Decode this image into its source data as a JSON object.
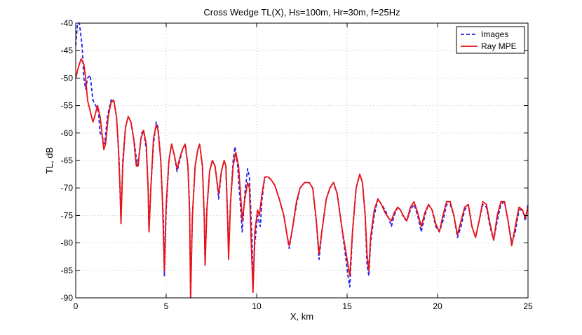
{
  "chart_data": {
    "type": "line",
    "title": "Cross Wedge TL(X), Hs=100m, Hr=30m, f=25Hz",
    "xlabel": "X, km",
    "ylabel": "TL, dB",
    "xlim": [
      0,
      25
    ],
    "ylim": [
      -90,
      -40
    ],
    "xticks": [
      0,
      5,
      10,
      15,
      20,
      25
    ],
    "yticks": [
      -90,
      -85,
      -80,
      -75,
      -70,
      -65,
      -60,
      -55,
      -50,
      -45,
      -40
    ],
    "grid": true,
    "legend_position": "top-right",
    "series": [
      {
        "name": "Images",
        "color": "#2222ee",
        "style": "dashed",
        "points": [
          [
            0,
            -44
          ],
          [
            0.1,
            -40
          ],
          [
            0.2,
            -40
          ],
          [
            0.35,
            -44
          ],
          [
            0.45,
            -50
          ],
          [
            0.55,
            -52
          ],
          [
            0.65,
            -50
          ],
          [
            0.8,
            -49.5
          ],
          [
            0.95,
            -54
          ],
          [
            1.1,
            -55
          ],
          [
            1.25,
            -56
          ],
          [
            1.35,
            -60
          ],
          [
            1.5,
            -61
          ],
          [
            1.6,
            -62
          ],
          [
            1.75,
            -57
          ],
          [
            1.95,
            -54
          ],
          [
            2.1,
            -54
          ],
          [
            2.25,
            -57
          ],
          [
            2.4,
            -65
          ],
          [
            2.5,
            -76
          ],
          [
            2.6,
            -65
          ],
          [
            2.75,
            -59
          ],
          [
            2.9,
            -57
          ],
          [
            3.05,
            -58
          ],
          [
            3.25,
            -62
          ],
          [
            3.4,
            -66
          ],
          [
            3.5,
            -64
          ],
          [
            3.65,
            -60
          ],
          [
            3.75,
            -59.5
          ],
          [
            3.9,
            -63
          ],
          [
            4.0,
            -70
          ],
          [
            4.05,
            -78
          ],
          [
            4.15,
            -70
          ],
          [
            4.3,
            -62
          ],
          [
            4.45,
            -58
          ],
          [
            4.55,
            -59
          ],
          [
            4.7,
            -65
          ],
          [
            4.85,
            -76
          ],
          [
            4.9,
            -86
          ],
          [
            5.0,
            -74
          ],
          [
            5.15,
            -65
          ],
          [
            5.3,
            -62
          ],
          [
            5.45,
            -64
          ],
          [
            5.6,
            -67
          ],
          [
            5.75,
            -65
          ],
          [
            5.9,
            -63
          ],
          [
            6.05,
            -62
          ],
          [
            6.2,
            -66
          ],
          [
            6.3,
            -74
          ],
          [
            6.35,
            -90
          ],
          [
            6.45,
            -75
          ],
          [
            6.6,
            -66
          ],
          [
            6.75,
            -63
          ],
          [
            6.85,
            -62
          ],
          [
            7.0,
            -66
          ],
          [
            7.1,
            -75
          ],
          [
            7.15,
            -84
          ],
          [
            7.25,
            -74
          ],
          [
            7.4,
            -67
          ],
          [
            7.55,
            -65
          ],
          [
            7.7,
            -66
          ],
          [
            7.85,
            -70
          ],
          [
            7.9,
            -72
          ],
          [
            8.05,
            -67
          ],
          [
            8.2,
            -65
          ],
          [
            8.3,
            -66
          ],
          [
            8.4,
            -76
          ],
          [
            8.45,
            -82
          ],
          [
            8.55,
            -73
          ],
          [
            8.7,
            -65
          ],
          [
            8.8,
            -62.5
          ],
          [
            8.95,
            -66
          ],
          [
            9.1,
            -73
          ],
          [
            9.2,
            -78
          ],
          [
            9.35,
            -71
          ],
          [
            9.5,
            -66.5
          ],
          [
            9.6,
            -68
          ],
          [
            9.75,
            -80
          ],
          [
            9.8,
            -88
          ],
          [
            9.9,
            -80
          ],
          [
            10.05,
            -75
          ],
          [
            10.2,
            -77
          ],
          [
            10.3,
            -72
          ],
          [
            10.45,
            -68
          ],
          [
            10.6,
            -68
          ],
          [
            10.8,
            -68.5
          ],
          [
            11.0,
            -69.5
          ],
          [
            11.25,
            -72
          ],
          [
            11.5,
            -75
          ],
          [
            11.7,
            -79
          ],
          [
            11.8,
            -81
          ],
          [
            11.95,
            -78
          ],
          [
            12.2,
            -73
          ],
          [
            12.4,
            -70
          ],
          [
            12.65,
            -69
          ],
          [
            12.9,
            -69
          ],
          [
            13.1,
            -70
          ],
          [
            13.3,
            -76
          ],
          [
            13.45,
            -83
          ],
          [
            13.6,
            -78
          ],
          [
            13.85,
            -72
          ],
          [
            14.05,
            -70
          ],
          [
            14.25,
            -69
          ],
          [
            14.45,
            -71
          ],
          [
            14.7,
            -77
          ],
          [
            14.9,
            -82
          ],
          [
            15.05,
            -86
          ],
          [
            15.15,
            -88
          ],
          [
            15.3,
            -78
          ],
          [
            15.5,
            -70
          ],
          [
            15.7,
            -67.5
          ],
          [
            15.85,
            -69
          ],
          [
            16.0,
            -75
          ],
          [
            16.1,
            -84
          ],
          [
            16.2,
            -86
          ],
          [
            16.3,
            -80
          ],
          [
            16.5,
            -75
          ],
          [
            16.7,
            -72
          ],
          [
            16.9,
            -73
          ],
          [
            17.1,
            -74
          ],
          [
            17.3,
            -75.5
          ],
          [
            17.45,
            -77
          ],
          [
            17.6,
            -75
          ],
          [
            17.8,
            -73.5
          ],
          [
            17.95,
            -74
          ],
          [
            18.15,
            -75.5
          ],
          [
            18.3,
            -76
          ],
          [
            18.5,
            -74
          ],
          [
            18.7,
            -73
          ],
          [
            18.9,
            -75
          ],
          [
            19.1,
            -78
          ],
          [
            19.3,
            -75
          ],
          [
            19.5,
            -73
          ],
          [
            19.7,
            -74
          ],
          [
            19.9,
            -77
          ],
          [
            20.1,
            -78
          ],
          [
            20.3,
            -76
          ],
          [
            20.5,
            -73
          ],
          [
            20.7,
            -73
          ],
          [
            20.9,
            -75
          ],
          [
            21.1,
            -79
          ],
          [
            21.3,
            -77
          ],
          [
            21.5,
            -74
          ],
          [
            21.7,
            -73
          ],
          [
            21.9,
            -77
          ],
          [
            22.1,
            -79
          ],
          [
            22.3,
            -76
          ],
          [
            22.5,
            -73
          ],
          [
            22.7,
            -73.5
          ],
          [
            22.9,
            -77
          ],
          [
            23.1,
            -79.5
          ],
          [
            23.3,
            -76
          ],
          [
            23.5,
            -73
          ],
          [
            23.7,
            -72.5
          ],
          [
            23.9,
            -76
          ],
          [
            24.1,
            -80
          ],
          [
            24.3,
            -78
          ],
          [
            24.5,
            -74
          ],
          [
            24.7,
            -74
          ],
          [
            24.85,
            -76
          ],
          [
            25.0,
            -73
          ]
        ]
      },
      {
        "name": "Ray MPE",
        "color": "#ee1111",
        "style": "solid",
        "points": [
          [
            0,
            -50
          ],
          [
            0.15,
            -48
          ],
          [
            0.3,
            -46.5
          ],
          [
            0.45,
            -47.5
          ],
          [
            0.55,
            -50
          ],
          [
            0.65,
            -54
          ],
          [
            0.8,
            -56
          ],
          [
            0.95,
            -58
          ],
          [
            1.05,
            -57
          ],
          [
            1.2,
            -55
          ],
          [
            1.35,
            -57
          ],
          [
            1.45,
            -60
          ],
          [
            1.55,
            -63
          ],
          [
            1.65,
            -62
          ],
          [
            1.8,
            -57
          ],
          [
            1.95,
            -54.5
          ],
          [
            2.1,
            -54
          ],
          [
            2.25,
            -57
          ],
          [
            2.35,
            -62
          ],
          [
            2.45,
            -70
          ],
          [
            2.5,
            -76.5
          ],
          [
            2.6,
            -66
          ],
          [
            2.75,
            -59
          ],
          [
            2.9,
            -57
          ],
          [
            3.05,
            -58
          ],
          [
            3.2,
            -61
          ],
          [
            3.35,
            -66
          ],
          [
            3.45,
            -66
          ],
          [
            3.6,
            -61
          ],
          [
            3.75,
            -59.5
          ],
          [
            3.9,
            -62
          ],
          [
            4.0,
            -70
          ],
          [
            4.05,
            -78
          ],
          [
            4.15,
            -70
          ],
          [
            4.3,
            -61
          ],
          [
            4.45,
            -58.5
          ],
          [
            4.55,
            -59.5
          ],
          [
            4.7,
            -65
          ],
          [
            4.8,
            -73
          ],
          [
            4.9,
            -85
          ],
          [
            5.0,
            -73
          ],
          [
            5.15,
            -65
          ],
          [
            5.3,
            -62
          ],
          [
            5.45,
            -64
          ],
          [
            5.6,
            -66.5
          ],
          [
            5.75,
            -64.5
          ],
          [
            5.9,
            -63
          ],
          [
            6.05,
            -62
          ],
          [
            6.2,
            -66
          ],
          [
            6.3,
            -75
          ],
          [
            6.35,
            -90
          ],
          [
            6.45,
            -75
          ],
          [
            6.6,
            -66
          ],
          [
            6.75,
            -63
          ],
          [
            6.85,
            -62
          ],
          [
            7.0,
            -66
          ],
          [
            7.1,
            -75
          ],
          [
            7.15,
            -84
          ],
          [
            7.25,
            -74
          ],
          [
            7.4,
            -67
          ],
          [
            7.55,
            -65
          ],
          [
            7.7,
            -66
          ],
          [
            7.85,
            -70
          ],
          [
            7.9,
            -71
          ],
          [
            8.05,
            -67
          ],
          [
            8.2,
            -65
          ],
          [
            8.3,
            -66
          ],
          [
            8.4,
            -76
          ],
          [
            8.45,
            -83
          ],
          [
            8.55,
            -73
          ],
          [
            8.7,
            -66
          ],
          [
            8.85,
            -63.5
          ],
          [
            9.0,
            -66
          ],
          [
            9.15,
            -73
          ],
          [
            9.2,
            -76
          ],
          [
            9.35,
            -72
          ],
          [
            9.5,
            -69
          ],
          [
            9.6,
            -70
          ],
          [
            9.7,
            -80
          ],
          [
            9.8,
            -89
          ],
          [
            9.9,
            -78
          ],
          [
            10.05,
            -74
          ],
          [
            10.15,
            -75
          ],
          [
            10.3,
            -71
          ],
          [
            10.45,
            -68
          ],
          [
            10.65,
            -68
          ],
          [
            10.8,
            -68.5
          ],
          [
            11.0,
            -69.5
          ],
          [
            11.25,
            -72
          ],
          [
            11.5,
            -75
          ],
          [
            11.7,
            -79
          ],
          [
            11.8,
            -80.5
          ],
          [
            11.95,
            -78
          ],
          [
            12.2,
            -72.5
          ],
          [
            12.4,
            -70
          ],
          [
            12.65,
            -69
          ],
          [
            12.9,
            -69
          ],
          [
            13.1,
            -70
          ],
          [
            13.3,
            -76
          ],
          [
            13.45,
            -82
          ],
          [
            13.6,
            -78
          ],
          [
            13.85,
            -72
          ],
          [
            14.05,
            -70
          ],
          [
            14.25,
            -69
          ],
          [
            14.45,
            -71
          ],
          [
            14.7,
            -77
          ],
          [
            14.9,
            -81
          ],
          [
            15.05,
            -84
          ],
          [
            15.15,
            -86
          ],
          [
            15.3,
            -78
          ],
          [
            15.5,
            -70
          ],
          [
            15.7,
            -67.5
          ],
          [
            15.85,
            -69
          ],
          [
            16.0,
            -75
          ],
          [
            16.1,
            -82
          ],
          [
            16.2,
            -85
          ],
          [
            16.3,
            -79
          ],
          [
            16.5,
            -74
          ],
          [
            16.7,
            -72
          ],
          [
            16.9,
            -73
          ],
          [
            17.1,
            -74.5
          ],
          [
            17.3,
            -75.5
          ],
          [
            17.45,
            -76
          ],
          [
            17.6,
            -74.5
          ],
          [
            17.8,
            -73.5
          ],
          [
            17.95,
            -74
          ],
          [
            18.1,
            -75
          ],
          [
            18.3,
            -76
          ],
          [
            18.5,
            -73.5
          ],
          [
            18.7,
            -72.5
          ],
          [
            18.9,
            -74.5
          ],
          [
            19.1,
            -77
          ],
          [
            19.3,
            -74.5
          ],
          [
            19.5,
            -73
          ],
          [
            19.7,
            -74
          ],
          [
            19.9,
            -76.5
          ],
          [
            20.1,
            -78
          ],
          [
            20.3,
            -75
          ],
          [
            20.5,
            -72.5
          ],
          [
            20.7,
            -72.5
          ],
          [
            20.9,
            -75
          ],
          [
            21.1,
            -78.5
          ],
          [
            21.3,
            -76
          ],
          [
            21.5,
            -73.5
          ],
          [
            21.7,
            -73
          ],
          [
            21.9,
            -77
          ],
          [
            22.1,
            -79
          ],
          [
            22.3,
            -76
          ],
          [
            22.5,
            -72.5
          ],
          [
            22.7,
            -73
          ],
          [
            22.9,
            -76.5
          ],
          [
            23.1,
            -79.5
          ],
          [
            23.3,
            -75
          ],
          [
            23.5,
            -72.5
          ],
          [
            23.7,
            -72.5
          ],
          [
            23.9,
            -76
          ],
          [
            24.1,
            -80.5
          ],
          [
            24.3,
            -77
          ],
          [
            24.5,
            -73.5
          ],
          [
            24.7,
            -74
          ],
          [
            24.85,
            -75.5
          ],
          [
            25.0,
            -73.5
          ]
        ]
      }
    ]
  }
}
